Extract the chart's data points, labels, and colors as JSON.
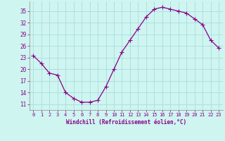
{
  "x": [
    0,
    1,
    2,
    3,
    4,
    5,
    6,
    7,
    8,
    9,
    10,
    11,
    12,
    13,
    14,
    15,
    16,
    17,
    18,
    19,
    20,
    21,
    22,
    23
  ],
  "y": [
    23.5,
    21.5,
    19.0,
    18.5,
    14.0,
    12.5,
    11.5,
    11.5,
    12.0,
    15.5,
    20.0,
    24.5,
    27.5,
    30.5,
    33.5,
    35.5,
    36.0,
    35.5,
    35.0,
    34.5,
    33.0,
    31.5,
    27.5,
    25.5
  ],
  "line_color": "#880088",
  "marker": "s",
  "marker_size": 2.0,
  "bg_color": "#cef5f0",
  "grid_color": "#aadddd",
  "xlabel": "Windchill (Refroidissement éolien,°C)",
  "xlabel_color": "#880088",
  "tick_color": "#880088",
  "yticks": [
    11,
    14,
    17,
    20,
    23,
    26,
    29,
    32,
    35
  ],
  "xticks": [
    0,
    1,
    2,
    3,
    4,
    5,
    6,
    7,
    8,
    9,
    10,
    11,
    12,
    13,
    14,
    15,
    16,
    17,
    18,
    19,
    20,
    21,
    22,
    23
  ],
  "xlim": [
    -0.5,
    23.5
  ],
  "ylim": [
    9.5,
    37.5
  ]
}
